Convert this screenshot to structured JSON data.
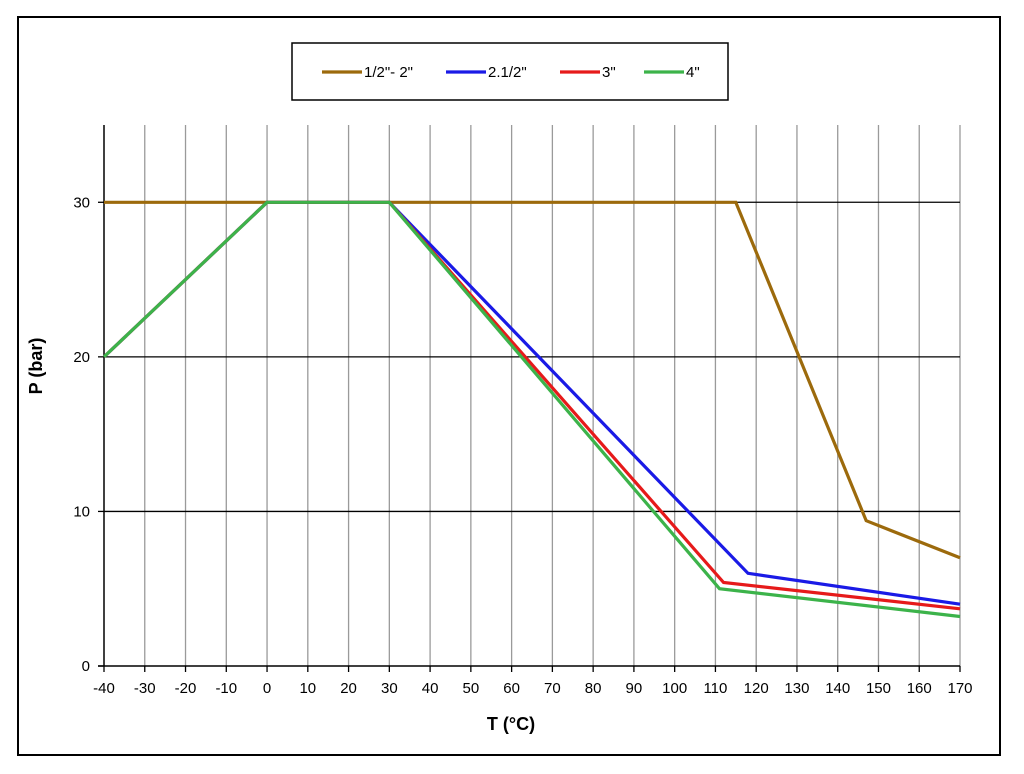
{
  "chart_data": {
    "type": "line",
    "xlabel": "T (°C)",
    "ylabel": "P (bar)",
    "xlim": [
      -40,
      170
    ],
    "ylim": [
      0,
      35
    ],
    "x_ticks": [
      -40,
      -30,
      -20,
      -10,
      0,
      10,
      20,
      30,
      40,
      50,
      60,
      70,
      80,
      90,
      100,
      110,
      120,
      130,
      140,
      150,
      160,
      170
    ],
    "y_ticks": [
      0,
      10,
      20,
      30
    ],
    "grid": {
      "vertical": true,
      "horizontal": true
    },
    "legend_position": "top-center",
    "series": [
      {
        "name": "1/2\"- 2\"",
        "color": "#9C6A0C",
        "points": [
          [
            -40,
            30
          ],
          [
            115,
            30
          ],
          [
            147,
            9.4
          ],
          [
            170,
            7.0
          ]
        ]
      },
      {
        "name": "2.1/2\"",
        "color": "#1A1AE6",
        "points": [
          [
            -40,
            20
          ],
          [
            0,
            30
          ],
          [
            30,
            30
          ],
          [
            118,
            6.0
          ],
          [
            170,
            4.0
          ]
        ]
      },
      {
        "name": "3\"",
        "color": "#E61A1A",
        "points": [
          [
            -40,
            20
          ],
          [
            0,
            30
          ],
          [
            30,
            30
          ],
          [
            112,
            5.4
          ],
          [
            170,
            3.7
          ]
        ]
      },
      {
        "name": "4\"",
        "color": "#3CB34A",
        "points": [
          [
            -40,
            20
          ],
          [
            0,
            30
          ],
          [
            30,
            30
          ],
          [
            111,
            5.0
          ],
          [
            170,
            3.2
          ]
        ]
      }
    ]
  }
}
